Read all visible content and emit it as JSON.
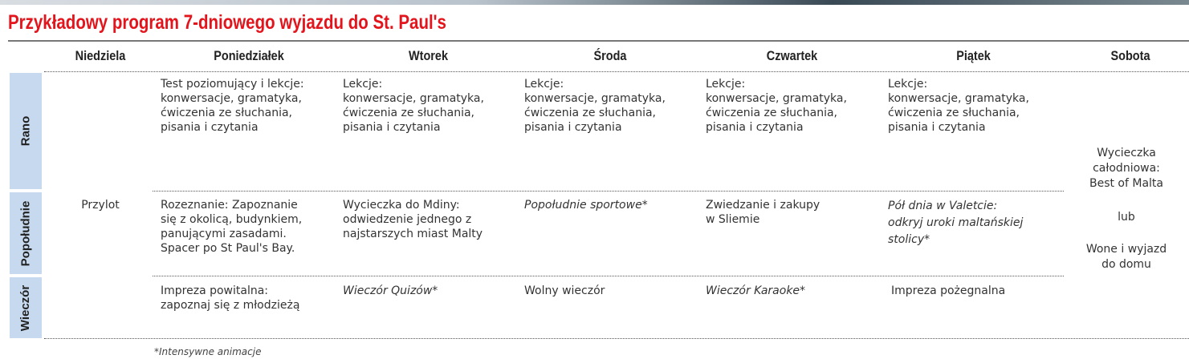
{
  "title": "Przykładowy program 7-dniowego wyjazdu do St. Paul's",
  "days": [
    "Niedziela",
    "Poniedziałek",
    "Wtorek",
    "Środa",
    "Czwartek",
    "Piątek",
    "Sobota"
  ],
  "periods": [
    "Rano",
    "Popołudnie",
    "Wieczór"
  ],
  "sunday": "Przylot",
  "rano": [
    "Test poziomujący i lekcje:\nkonwersacje, gramatyka,\nćwiczenia ze słuchania,\npisania i czytania",
    "Lekcje:\nkonwersacje, gramatyka,\nćwiczenia ze słuchania,\npisania i czytania",
    "Lekcje:\nkonwersacje, gramatyka,\nćwiczenia ze słuchania,\npisania i czytania",
    "Lekcje:\nkonwersacje, gramatyka,\nćwiczenia ze słuchania,\npisania i czytania",
    "Lekcje:\nkonwersacje, gramatyka,\nćwiczenia ze słuchania,\npisania i czytania"
  ],
  "popoludnie": [
    "Rozeznanie: Zapoznanie\nsię z okolicą, budynkiem,\npanującymi zasadami.\nSpacer po St Paul's Bay.",
    "Wycieczka do Mdiny:\nodwiedzenie jednego z\nnajstarszych miast Malty",
    "Popołudnie sportowe*",
    "Zwiedzanie i zakupy\nw Sliemie",
    "Pół dnia w Valetcie:\nodkryj uroki maltańskiej\nstolicy*"
  ],
  "wieczor": [
    "Impreza powitalna:\nzapoznaj się z młodzieżą",
    "Wieczór Quizów*",
    "Wolny wieczór",
    "Wieczór Karaoke*",
    "Impreza pożegnalna"
  ],
  "saturday": {
    "trip": "Wycieczka\ncałodniowa:\nBest of Malta",
    "or": "lub",
    "departure": "Wone i wyjazd\ndo domu"
  },
  "footnote": "*Intensywne animacje"
}
